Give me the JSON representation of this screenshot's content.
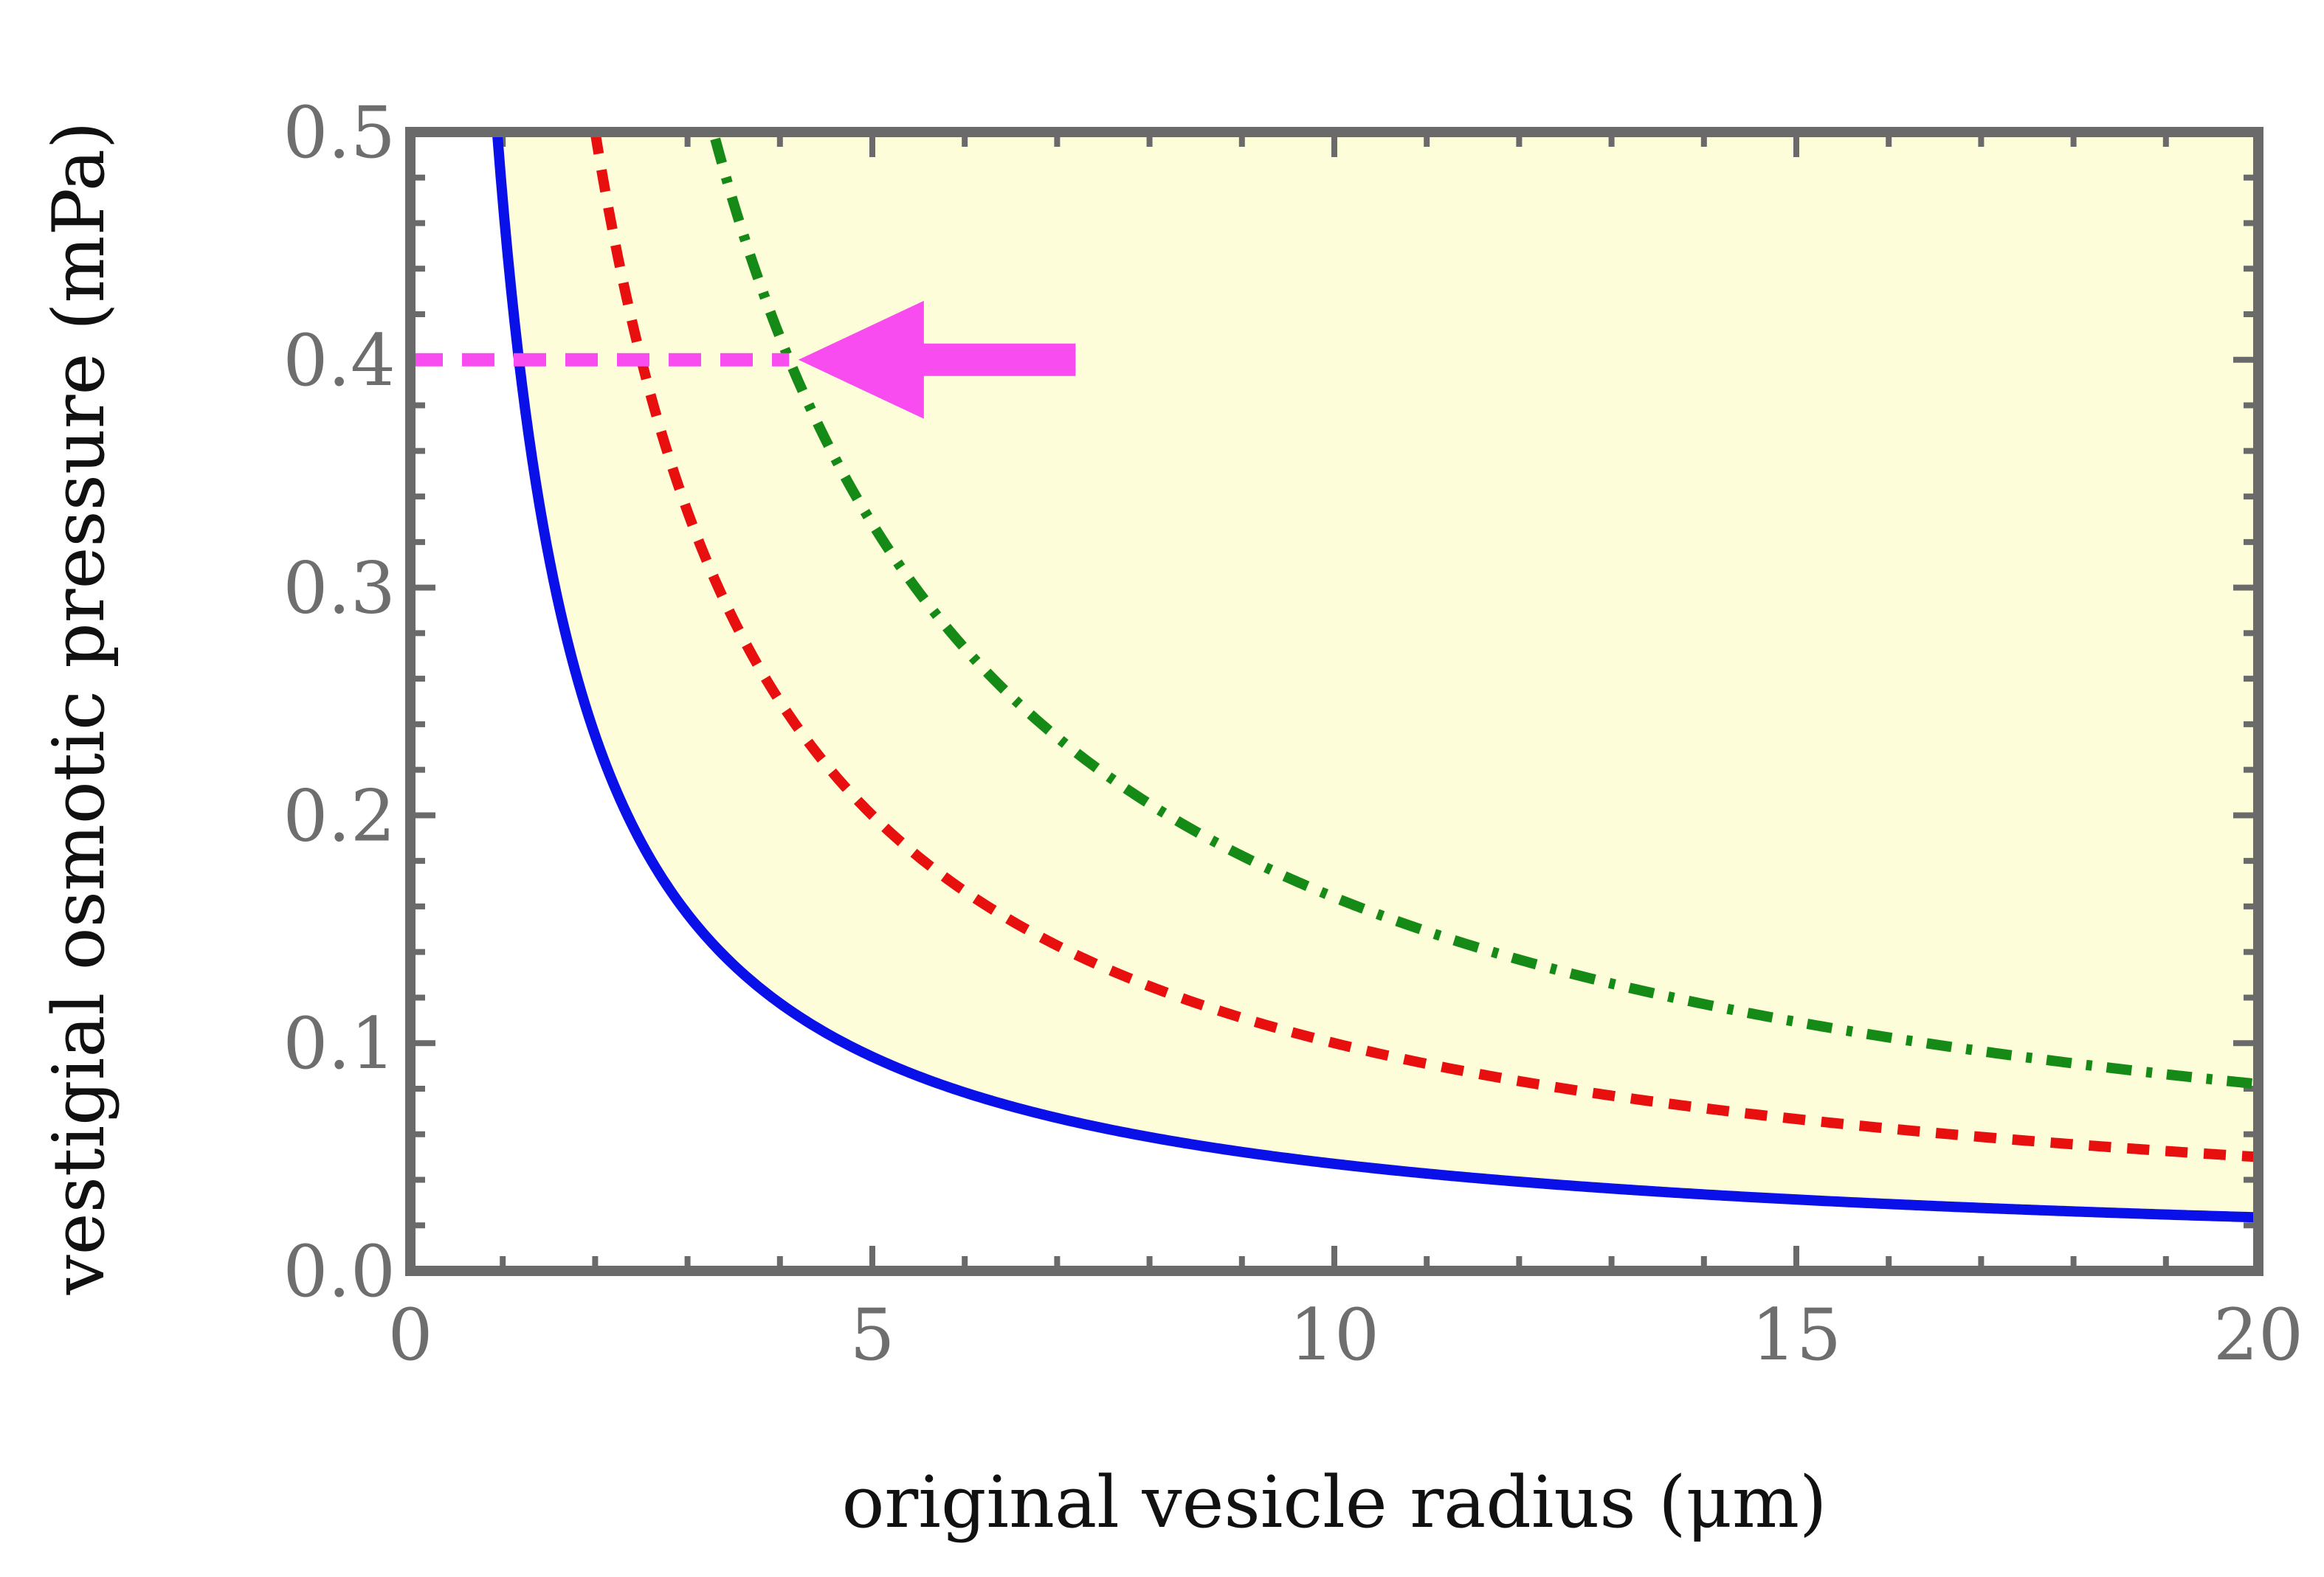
{
  "chart_data": {
    "type": "line",
    "title": "",
    "xlabel": "original vesicle radius (μm)",
    "ylabel": "vestigial osmotic pressure (mPa)",
    "xlim": [
      0,
      20
    ],
    "ylim": [
      0,
      0.5
    ],
    "x_major_ticks": [
      0,
      5,
      10,
      15,
      20
    ],
    "x_tick_labels": [
      "0",
      "5",
      "10",
      "15",
      "20"
    ],
    "x_minor_step": 1,
    "y_major_ticks": [
      0,
      0.1,
      0.2,
      0.3,
      0.4,
      0.5
    ],
    "y_tick_labels": [
      "0.0",
      "0.1",
      "0.2",
      "0.3",
      "0.4",
      "0.5"
    ],
    "y_minor_step": 0.02,
    "shaded_region": {
      "description": "area above solid curve",
      "color": "#fdfdd9"
    },
    "series": [
      {
        "name": "solid",
        "style": "solid",
        "color": "#0a10e8",
        "k": 0.47,
        "formula": "y = k / x",
        "x_range": [
          0.94,
          20
        ]
      },
      {
        "name": "dashed",
        "style": "dashed",
        "color": "#e8100f",
        "k": 1.0,
        "formula": "y = k / x",
        "x_range": [
          2.0,
          20
        ]
      },
      {
        "name": "dash-dot",
        "style": "dashdot",
        "color": "#168a16",
        "k": 1.64,
        "formula": "y = k / x",
        "x_range": [
          3.3,
          20
        ]
      }
    ],
    "annotation": {
      "reference_line": {
        "y": 0.4,
        "x_from": 0,
        "x_to": 4.1,
        "color": "#f94cf0",
        "style": "dashed"
      },
      "arrow": {
        "tip": [
          4.2,
          0.4
        ],
        "tail": [
          7.2,
          0.4
        ],
        "color": "#f94cf0"
      }
    }
  }
}
